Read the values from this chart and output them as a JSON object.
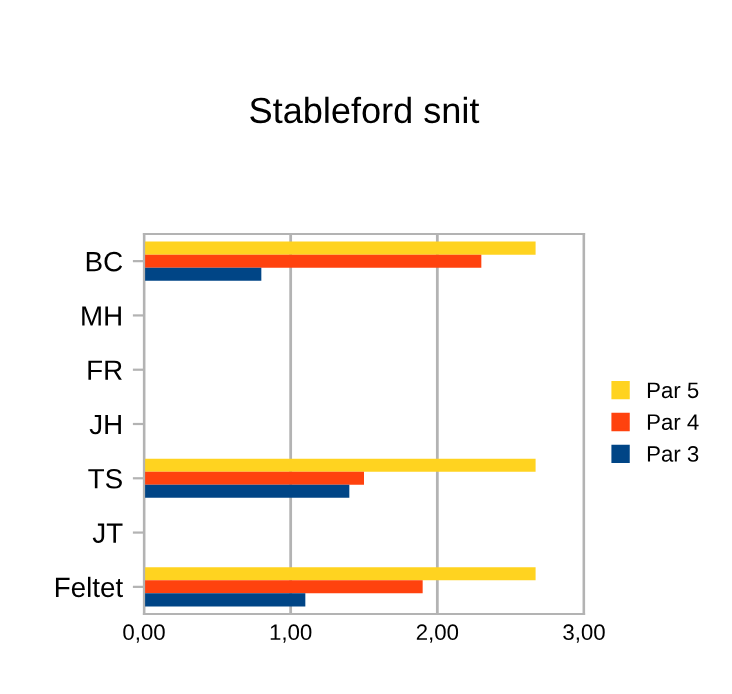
{
  "chart_data": {
    "type": "bar",
    "orientation": "horizontal",
    "title": "Stableford snit",
    "categories": [
      "BC",
      "MH",
      "FR",
      "JH",
      "TS",
      "JT",
      "Feltet"
    ],
    "series": [
      {
        "name": "Par 5",
        "color": "#ffd320",
        "values": [
          2.67,
          null,
          null,
          null,
          2.67,
          null,
          2.67
        ]
      },
      {
        "name": "Par 4",
        "color": "#ff420e",
        "values": [
          2.3,
          null,
          null,
          null,
          1.5,
          null,
          1.9
        ]
      },
      {
        "name": "Par 3",
        "color": "#004586",
        "values": [
          0.8,
          null,
          null,
          null,
          1.4,
          null,
          1.1
        ]
      }
    ],
    "xlim": [
      0,
      3
    ],
    "xticks": [
      {
        "value": 0,
        "label": "0,00"
      },
      {
        "value": 1,
        "label": "1,00"
      },
      {
        "value": 2,
        "label": "2,00"
      },
      {
        "value": 3,
        "label": "3,00"
      }
    ],
    "grid": "x",
    "legend": "right"
  }
}
